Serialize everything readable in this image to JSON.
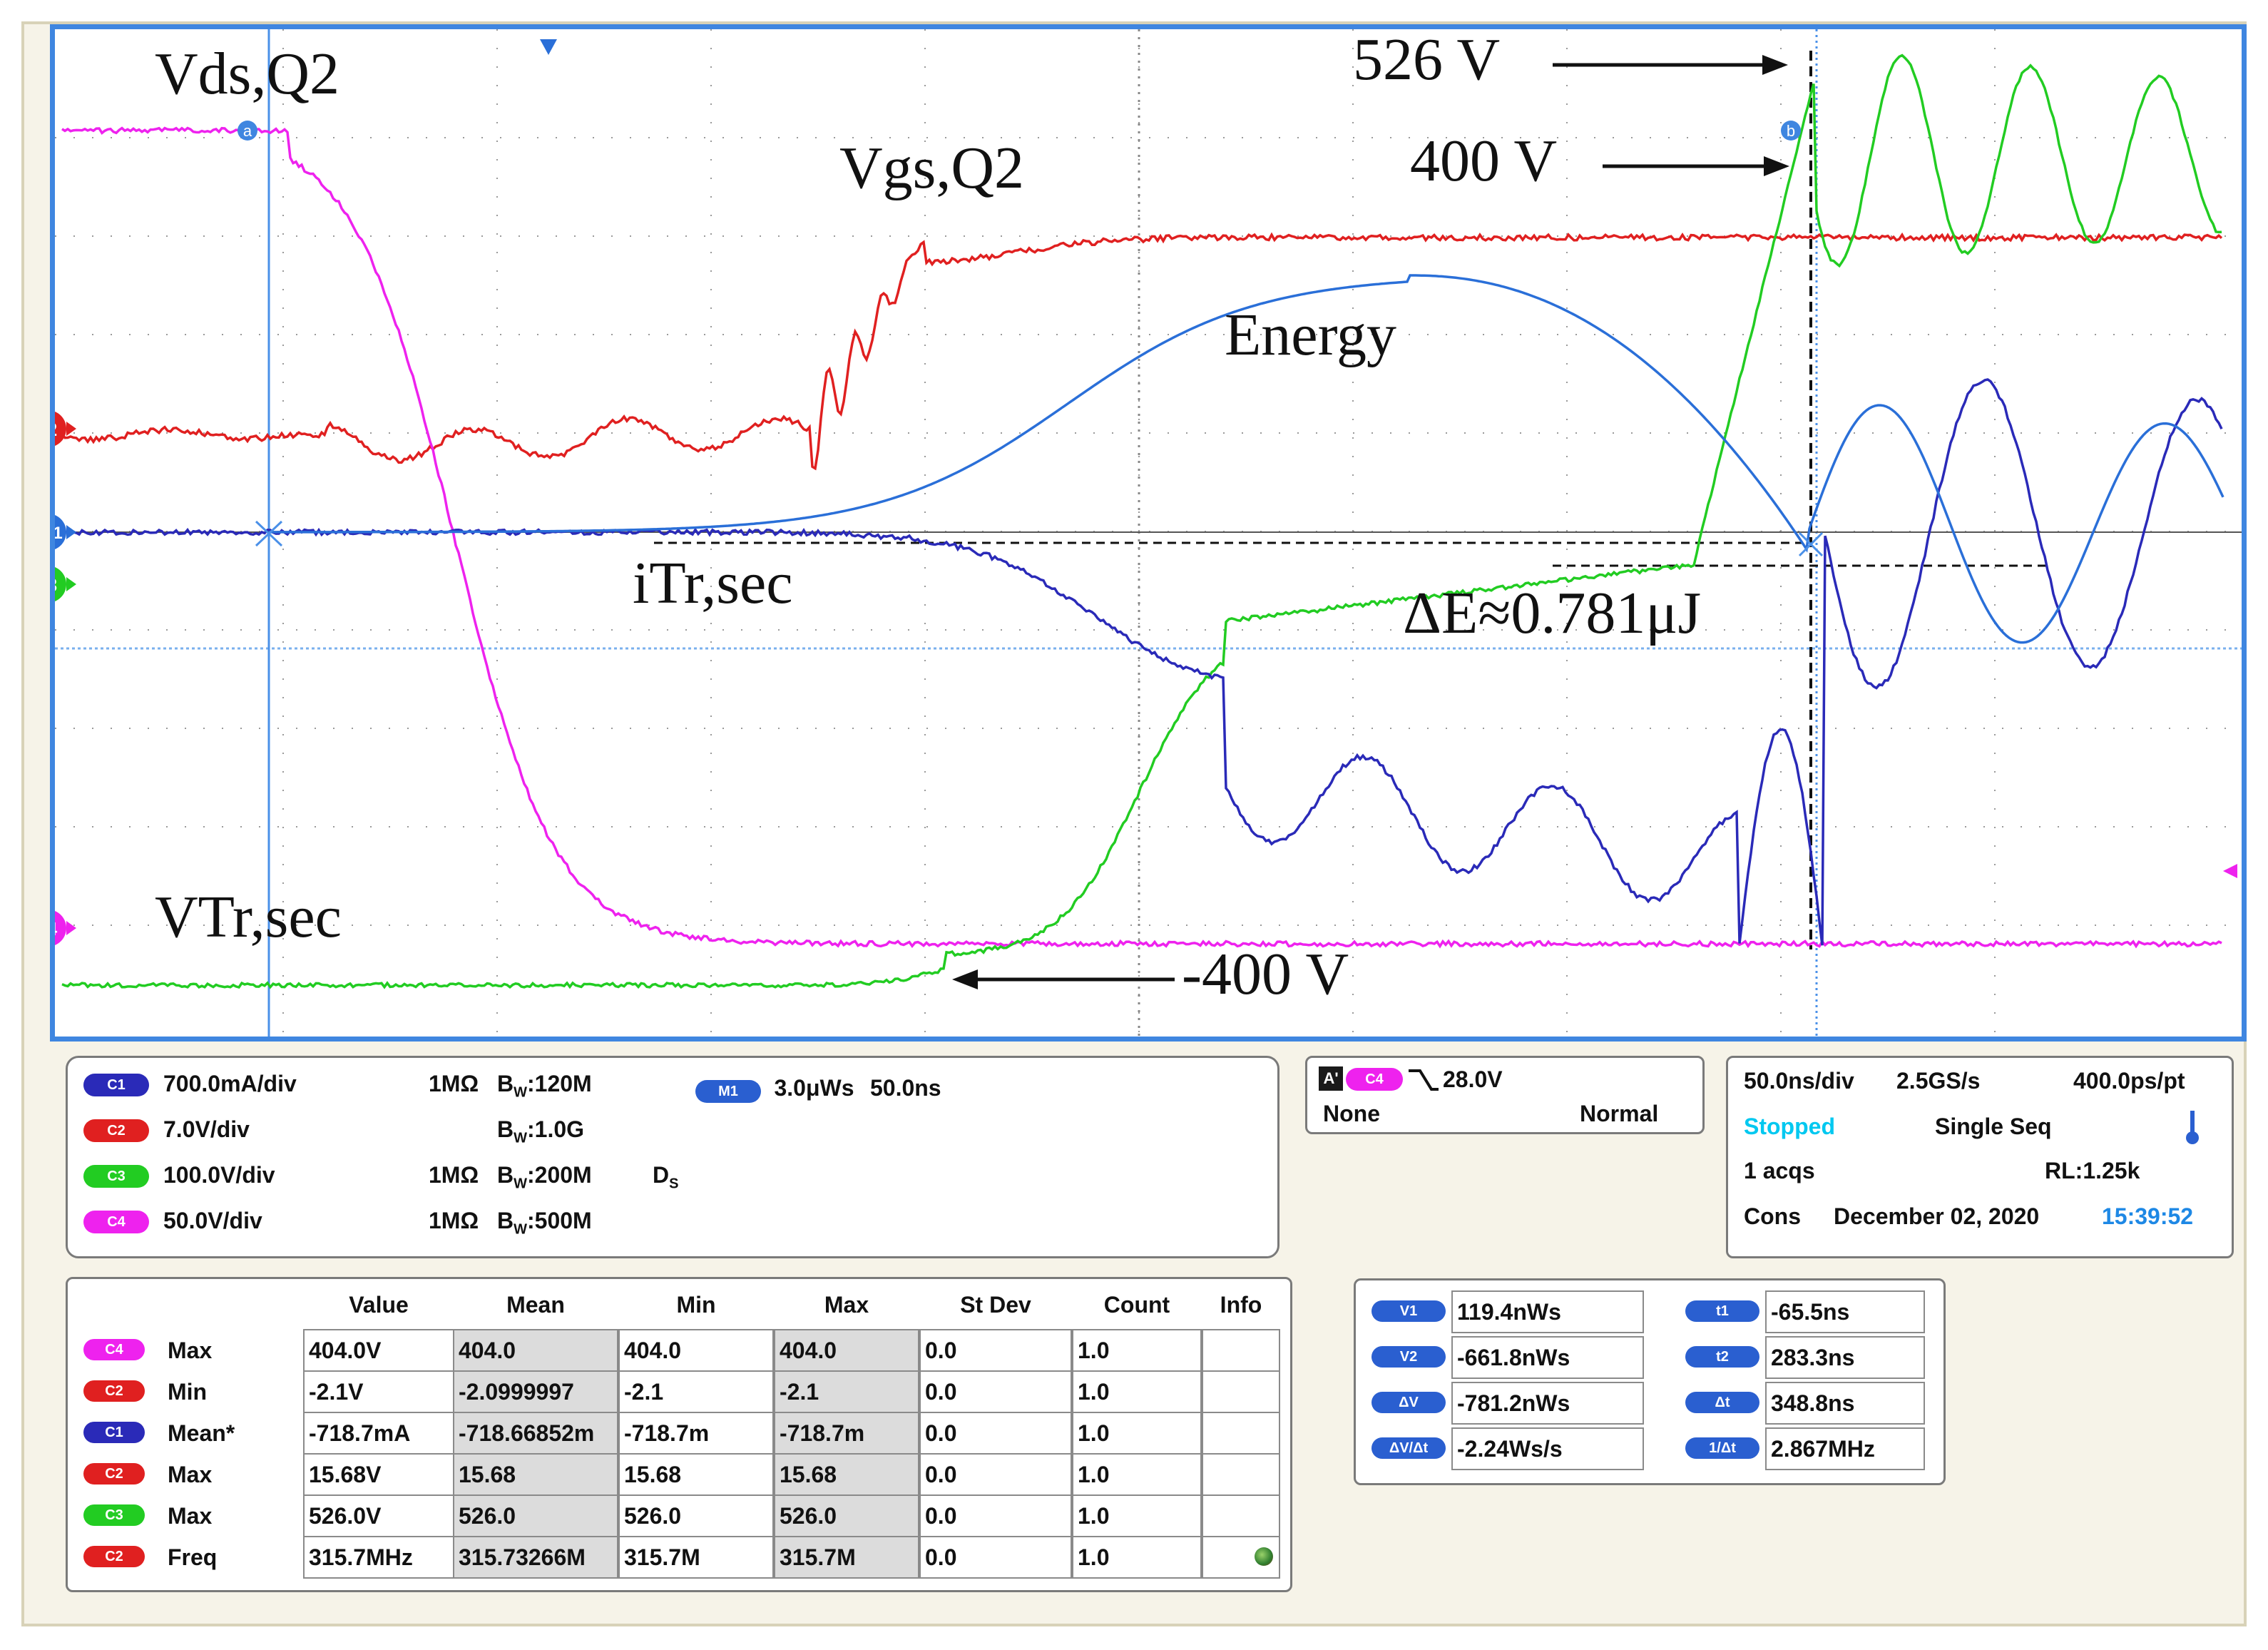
{
  "annotations": {
    "vds": "Vds,Q2",
    "vgs": "Vgs,Q2",
    "energy": "Energy",
    "itr": "iTr,sec",
    "vtr": "VTr,sec",
    "v526": "526 V",
    "v400": "400 V",
    "vneg400": "-400 V",
    "delta_e": "ΔE≈0.781μJ"
  },
  "markers": {
    "ch2": "2",
    "m1": "M1",
    "ch3": "3",
    "ch4": "4",
    "cursor_a": "a",
    "cursor_b": "b"
  },
  "colors": {
    "c1": "#2a2ab8",
    "c2": "#e02020",
    "c3": "#22cc22",
    "c4": "#ee22ee",
    "m1": "#2a6fd8",
    "grid": "#9a9a9a",
    "frame": "#3f86e0",
    "cyan": "#00c8f0"
  },
  "channels": [
    {
      "tag": "C1",
      "scale": "700.0mA/div",
      "imp": "1MΩ",
      "bw": "120M",
      "extra": ""
    },
    {
      "tag": "C2",
      "scale": "7.0V/div",
      "imp": "",
      "bw": "1.0G",
      "extra": ""
    },
    {
      "tag": "C3",
      "scale": "100.0V/div",
      "imp": "1MΩ",
      "bw": "200M",
      "extra": "D"
    },
    {
      "tag": "C4",
      "scale": "50.0V/div",
      "imp": "1MΩ",
      "bw": "500M",
      "extra": ""
    }
  ],
  "bw_prefix": "B",
  "bw_sub": "W",
  "ds_sub": "S",
  "math": {
    "tag": "M1",
    "scale": "3.0μWs",
    "time": "50.0ns"
  },
  "trigger": {
    "a_tag": "A'",
    "source": "C4",
    "level": "28.0V",
    "coupling": "None",
    "mode": "Normal"
  },
  "acquisition": {
    "timebase": "50.0ns/div",
    "sample_rate": "2.5GS/s",
    "resolution": "400.0ps/pt",
    "status": "Stopped",
    "seq": "Single Seq",
    "acqs": "1 acqs",
    "record": "RL:1.25k",
    "cons": "Cons",
    "date": "December 02, 2020",
    "time": "15:39:52"
  },
  "measurements": {
    "headers": [
      "Value",
      "Mean",
      "Min",
      "Max",
      "St Dev",
      "Count",
      "Info"
    ],
    "rows": [
      {
        "src": "C4",
        "type": "Max",
        "value": "404.0V",
        "mean": "404.0",
        "min": "404.0",
        "max": "404.0",
        "stdev": "0.0",
        "count": "1.0"
      },
      {
        "src": "C2",
        "type": "Min",
        "value": "-2.1V",
        "mean": "-2.0999997",
        "min": "-2.1",
        "max": "-2.1",
        "stdev": "0.0",
        "count": "1.0"
      },
      {
        "src": "C1",
        "type": "Mean*",
        "value": "-718.7mA",
        "mean": "-718.66852m",
        "min": "-718.7m",
        "max": "-718.7m",
        "stdev": "0.0",
        "count": "1.0"
      },
      {
        "src": "C2",
        "type": "Max",
        "value": "15.68V",
        "mean": "15.68",
        "min": "15.68",
        "max": "15.68",
        "stdev": "0.0",
        "count": "1.0"
      },
      {
        "src": "C3",
        "type": "Max",
        "value": "526.0V",
        "mean": "526.0",
        "min": "526.0",
        "max": "526.0",
        "stdev": "0.0",
        "count": "1.0"
      },
      {
        "src": "C2",
        "type": "Freq",
        "value": "315.7MHz",
        "mean": "315.73266M",
        "min": "315.7M",
        "max": "315.7M",
        "stdev": "0.0",
        "count": "1.0"
      }
    ]
  },
  "cursors": [
    {
      "tag": "V1",
      "value": "119.4nWs",
      "tag2": "t1",
      "value2": "-65.5ns"
    },
    {
      "tag": "V2",
      "value": "-661.8nWs",
      "tag2": "t2",
      "value2": "283.3ns"
    },
    {
      "tag": "ΔV",
      "value": "-781.2nWs",
      "tag2": "Δt",
      "value2": "348.8ns"
    },
    {
      "tag": "ΔV/Δt",
      "value": "-2.24Ws/s",
      "tag2": "1/Δt",
      "value2": "2.867MHz"
    }
  ]
}
